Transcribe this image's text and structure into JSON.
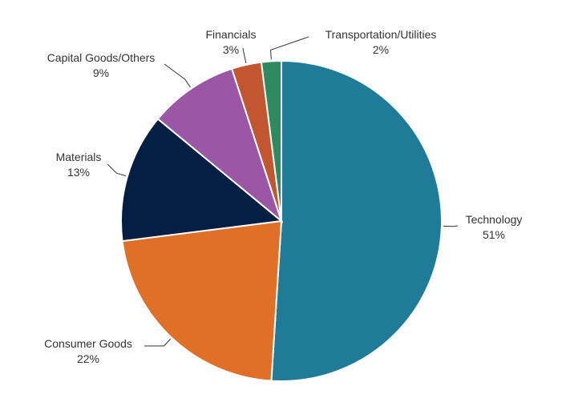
{
  "chart_data": {
    "type": "pie",
    "title": "",
    "start_angle_deg": 0,
    "direction": "clockwise",
    "slices": [
      {
        "name": "Technology",
        "value": 51,
        "label": "51%",
        "color": "#1f7b98"
      },
      {
        "name": "Consumer Goods",
        "value": 22,
        "label": "22%",
        "color": "#e07027"
      },
      {
        "name": "Materials",
        "value": 13,
        "label": "13%",
        "color": "#041f43"
      },
      {
        "name": "Capital Goods/Others",
        "value": 9,
        "label": "9%",
        "color": "#9c56a6"
      },
      {
        "name": "Financials",
        "value": 3,
        "label": "3%",
        "color": "#c25630"
      },
      {
        "name": "Transportation/Utilities",
        "value": 2,
        "label": "2%",
        "color": "#2e8b60"
      }
    ]
  }
}
